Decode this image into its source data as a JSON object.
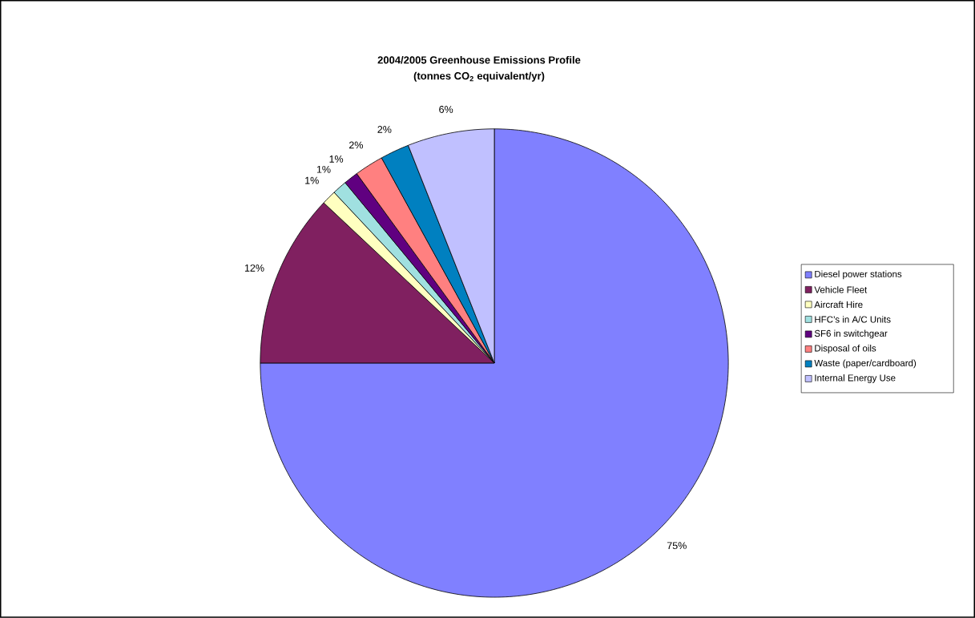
{
  "chart_data": {
    "type": "pie",
    "title": "2004/2005 Greenhouse Emissions Profile",
    "subtitle": "(tonnes CO$_{2}$ equivalent/yr)",
    "categories": [
      "Diesel power stations",
      "Vehicle Fleet",
      "Aircraft Hire",
      "HFC’s in A/C Units",
      "SF6 in switchgear",
      "Disposal of oils",
      "Waste (paper/cardboard)",
      "Internal Energy Use"
    ],
    "values": [
      75,
      12,
      1,
      1,
      1,
      2,
      2,
      6
    ],
    "value_labels": [
      "75%",
      "12%",
      "1%",
      "1%",
      "1%",
      "2%",
      "2%",
      "6%"
    ],
    "colors": [
      "#8080ff",
      "#802060",
      "#ffffc0",
      "#a0e0e0",
      "#600080",
      "#ff8080",
      "#0080c0",
      "#c0c0ff"
    ],
    "legend": "right"
  }
}
